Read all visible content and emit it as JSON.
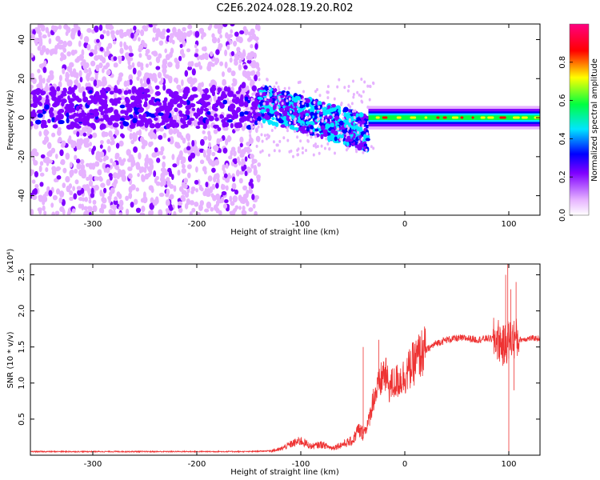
{
  "title": "C2E6.2024.028.19.20.R02",
  "chart_data": [
    {
      "type": "heatmap",
      "xlabel": "Height of straight line (km)",
      "ylabel": "Frequency (Hz)",
      "xlim": [
        -360,
        130
      ],
      "ylim": [
        -50,
        48
      ],
      "xticks": [
        "-300",
        "-200",
        "-100",
        "0",
        "100"
      ],
      "xtick_values": [
        -300,
        -200,
        -100,
        0,
        100
      ],
      "yticks": [
        "-40",
        "-20",
        "0",
        "20",
        "40"
      ],
      "ytick_values": [
        -40,
        -20,
        0,
        20,
        40
      ],
      "colorbar": {
        "label": "Normalized spectral amplitude",
        "range": [
          0,
          1
        ],
        "ticks": [
          "0.0",
          "0.2",
          "0.4",
          "0.6",
          "0.8"
        ],
        "tick_values": [
          0.0,
          0.2,
          0.4,
          0.6,
          0.8
        ],
        "colormap": [
          "#ffffff",
          "#e6b3ff",
          "#8000ff",
          "#0000ff",
          "#00e5ff",
          "#00ff40",
          "#ffff00",
          "#ff0000",
          "#ff0080"
        ]
      },
      "regions": [
        {
          "x_range": [
            -360,
            -140
          ],
          "freq_range": [
            -50,
            48
          ],
          "amplitude": 0.05,
          "note": "diffuse broadband"
        },
        {
          "x_range": [
            -360,
            -140
          ],
          "freq_center": 5,
          "freq_halfwidth": 10,
          "amplitude": 0.15
        },
        {
          "x_range": [
            -140,
            -35
          ],
          "freq_center_start": 8,
          "freq_center_end": -8,
          "amplitude": 0.3
        },
        {
          "x_range": [
            -35,
            130
          ],
          "freq_center": 0,
          "freq_halfwidth": 2,
          "amplitude": 0.9
        }
      ]
    },
    {
      "type": "line",
      "xlabel": "Height of straight line (km)",
      "ylabel": "SNR (10 * v/v)",
      "y_multiplier": "(x10⁴)",
      "xlim": [
        -360,
        130
      ],
      "ylim": [
        0,
        2.65
      ],
      "xticks": [
        "-300",
        "-200",
        "-100",
        "0",
        "100"
      ],
      "xtick_values": [
        -300,
        -200,
        -100,
        0,
        100
      ],
      "yticks": [
        "0.5",
        "1.0",
        "1.5",
        "2.0",
        "2.5"
      ],
      "ytick_values": [
        0.5,
        1.0,
        1.5,
        2.0,
        2.5
      ],
      "color": "#ee3333",
      "series": [
        {
          "x": [
            -360,
            -300,
            -200,
            -150,
            -130,
            -120,
            -110,
            -100,
            -90,
            -80,
            -70,
            -60,
            -50,
            -45,
            -40,
            -35,
            -30,
            -25,
            -20,
            -15,
            -10,
            -5,
            0,
            5,
            10,
            15,
            20,
            25,
            30,
            40,
            50,
            60,
            70,
            80,
            90,
            95,
            100,
            105,
            110,
            120,
            130
          ],
          "y": [
            0.05,
            0.05,
            0.05,
            0.05,
            0.06,
            0.08,
            0.15,
            0.2,
            0.12,
            0.15,
            0.1,
            0.15,
            0.2,
            0.35,
            0.3,
            0.45,
            0.8,
            0.95,
            1.15,
            0.95,
            1.0,
            1.05,
            1.1,
            1.2,
            1.3,
            1.4,
            1.45,
            1.5,
            1.55,
            1.6,
            1.62,
            1.62,
            1.6,
            1.62,
            1.6,
            1.5,
            1.6,
            1.62,
            1.6,
            1.62,
            1.62
          ]
        }
      ]
    }
  ]
}
